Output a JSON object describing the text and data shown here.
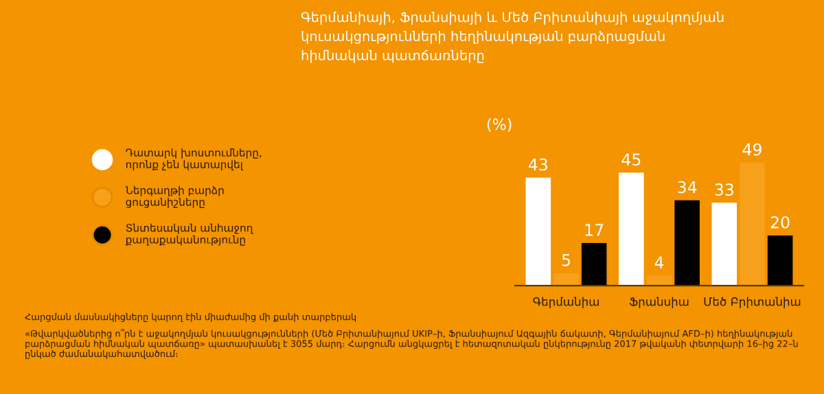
{
  "chart_data": {
    "type": "bar",
    "title": "Գերմանիայի, Ֆրանսիայի և Մեծ Բրիտանիայի աջակողմյան\nկուսակցությունների հեղինակության բարձրացման\nհիմնական պատճառները",
    "categories": [
      "Գերմանիա",
      "Ֆրանսիա",
      "Մեծ Բրիտանիա"
    ],
    "series": [
      {
        "name": "Դատարկ խոստումները,\nորոնք չեն կատարվել",
        "color": "#ffffff",
        "values": [
          43,
          45,
          33
        ]
      },
      {
        "name": "Ներգաղթի բարձր\nցուցանիշները",
        "color": "#f7a01c",
        "values": [
          5,
          4,
          49
        ]
      },
      {
        "name": "Տնտեսական անհաջող\nքաղաքականությունը",
        "color": "#000000",
        "values": [
          17,
          34,
          20
        ]
      }
    ],
    "data_labels": true,
    "legend": "left",
    "grid": false,
    "annotations": [
      "(%)",
      "Հարցման մասնակիցները կարող էին միաժամից մի քանի տարբերակ",
      "«Թվարկվածներից ո՞րն է աջակողմյան կուսակցությունների (Մեծ Բրիտանիայում UKIP–ի, Ֆրանսիայում Ազգային ճակատի, Գերմանիայում AFD–ի) հեղինակության բարձրացման հիմնական պատճառը» պատասխանել է 3055 մարդ։ Հարցումն անցկացրել է հետազոտական ընկերությունը 2017 թվականի փետրվարի 16–ից 22–ն ընկած ժամանակահատվածում։"
    ]
  }
}
